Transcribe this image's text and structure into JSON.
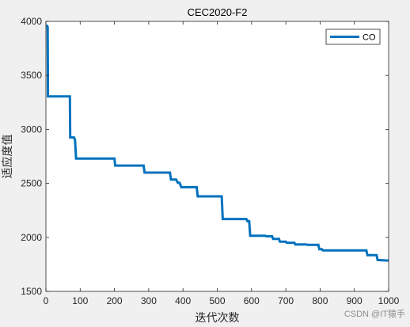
{
  "watermark": "CSDN @IT猿手",
  "chart_data": {
    "type": "line",
    "title": "CEC2020-F2",
    "xlabel": "迭代次数",
    "ylabel": "适应度值",
    "xlim": [
      0,
      1000
    ],
    "ylim": [
      1500,
      4000
    ],
    "xticks": [
      "0",
      "100",
      "200",
      "300",
      "400",
      "500",
      "600",
      "700",
      "800",
      "900",
      "1000"
    ],
    "yticks": [
      "1500",
      "2000",
      "2500",
      "3000",
      "3500",
      "4000"
    ],
    "grid": false,
    "legend_position": "top-right",
    "series": [
      {
        "name": "CO",
        "color": "#0072bd",
        "x": [
          1,
          3,
          5,
          6,
          70,
          71,
          82,
          85,
          88,
          200,
          202,
          285,
          288,
          362,
          365,
          380,
          385,
          390,
          395,
          440,
          443,
          513,
          516,
          585,
          588,
          593,
          596,
          640,
          643,
          660,
          663,
          680,
          683,
          700,
          703,
          725,
          728,
          760,
          763,
          795,
          798,
          805,
          808,
          935,
          938,
          965,
          968,
          1000
        ],
        "y": [
          3960,
          3960,
          3950,
          3305,
          3305,
          2925,
          2925,
          2900,
          2730,
          2730,
          2665,
          2665,
          2600,
          2600,
          2535,
          2535,
          2505,
          2505,
          2465,
          2465,
          2380,
          2380,
          2170,
          2170,
          2150,
          2150,
          2015,
          2015,
          2010,
          2010,
          1985,
          1985,
          1960,
          1960,
          1950,
          1950,
          1935,
          1935,
          1930,
          1930,
          1890,
          1890,
          1880,
          1880,
          1835,
          1835,
          1790,
          1785
        ]
      }
    ]
  }
}
